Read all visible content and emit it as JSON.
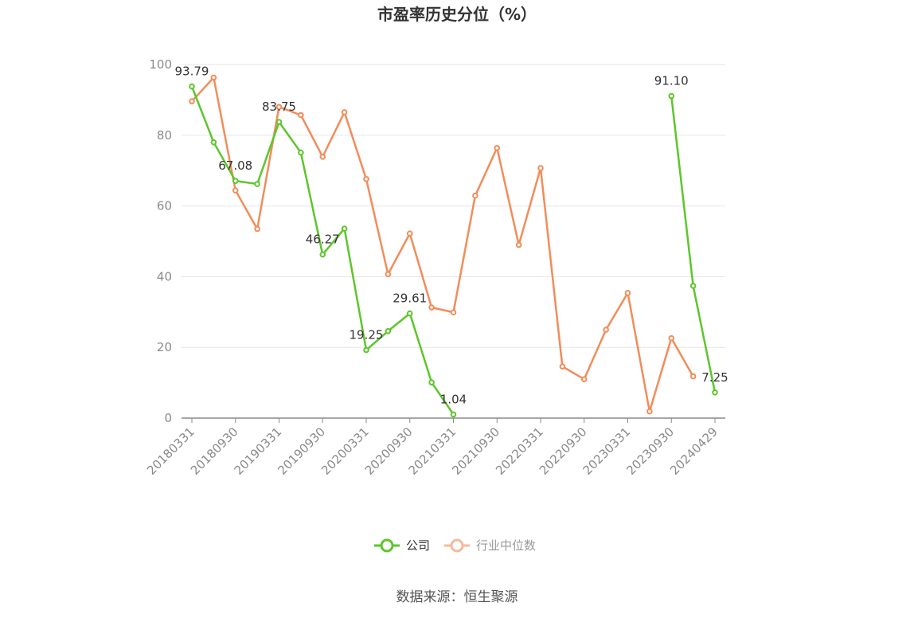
{
  "chart_data": {
    "type": "line",
    "title": "市盈率历史分位（%）",
    "xlabel": "",
    "ylabel": "",
    "ylim": [
      0,
      100
    ],
    "yticks": [
      "0",
      "20",
      "40",
      "60",
      "80",
      "100"
    ],
    "grid": true,
    "legend_position": "bottom",
    "x_tick_labels": [
      "20180331",
      "20180930",
      "20190331",
      "20190930",
      "20200331",
      "20200930",
      "20210331",
      "20210930",
      "20220331",
      "20220930",
      "20230331",
      "20230930",
      "20240429"
    ],
    "x": [
      "20180331",
      "20180630",
      "20180930",
      "20181231",
      "20190331",
      "20190630",
      "20190930",
      "20191231",
      "20200331",
      "20200630",
      "20200930",
      "20201231",
      "20210331",
      "20210630",
      "20210930",
      "20211231",
      "20220331",
      "20220630",
      "20220930",
      "20221231",
      "20230331",
      "20230630",
      "20230930",
      "20231231",
      "20240429"
    ],
    "series": [
      {
        "name": "公司",
        "color": "#5cc62a",
        "values": [
          93.79,
          78.0,
          67.08,
          66.2,
          83.75,
          75.1,
          46.27,
          53.6,
          19.25,
          24.6,
          29.61,
          10.1,
          1.04,
          null,
          null,
          null,
          null,
          null,
          null,
          null,
          null,
          null,
          91.1,
          37.4,
          7.25
        ],
        "labels": [
          {
            "index": 0,
            "text": "93.79"
          },
          {
            "index": 2,
            "text": "67.08"
          },
          {
            "index": 4,
            "text": "83.75"
          },
          {
            "index": 6,
            "text": "46.27"
          },
          {
            "index": 8,
            "text": "19.25"
          },
          {
            "index": 10,
            "text": "29.61"
          },
          {
            "index": 12,
            "text": "1.04"
          },
          {
            "index": 22,
            "text": "91.10"
          },
          {
            "index": 24,
            "text": "7.25"
          }
        ]
      },
      {
        "name": "行业中位数",
        "color": "#f28c5a",
        "values": [
          89.6,
          96.3,
          64.4,
          53.5,
          88.0,
          85.7,
          73.9,
          86.5,
          67.6,
          40.7,
          52.2,
          31.3,
          29.9,
          62.9,
          76.4,
          49.0,
          70.7,
          14.6,
          11.0,
          25.0,
          35.4,
          1.9,
          22.6,
          11.8,
          null
        ]
      }
    ]
  },
  "legend": {
    "company": "公司",
    "industry": "行业中位数"
  },
  "source": "数据来源：恒生聚源"
}
